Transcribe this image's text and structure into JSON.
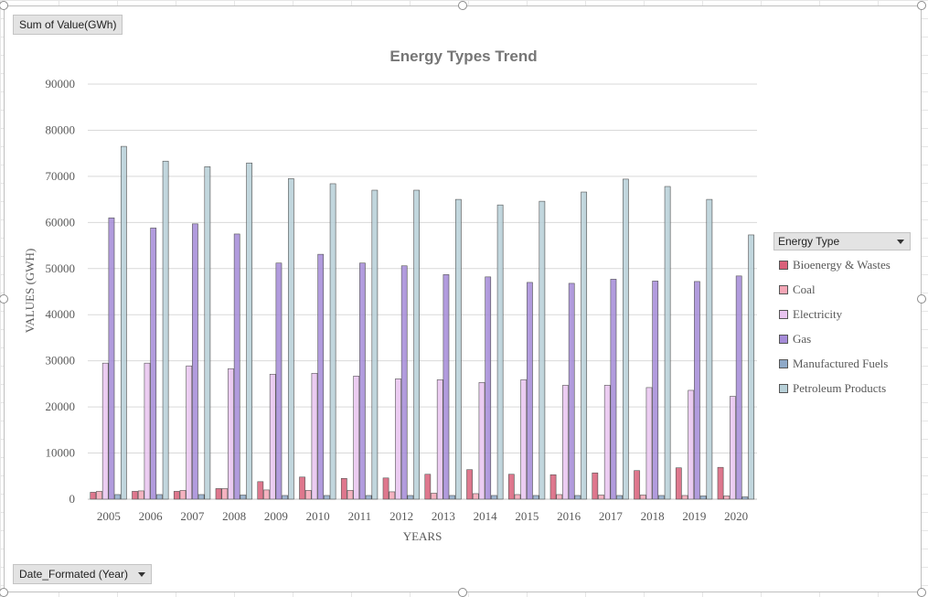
{
  "field_buttons": {
    "values_field": "Sum of Value(GWh)",
    "axis_field": "Date_Formated  (Year)"
  },
  "legend": {
    "title": "Energy Type"
  },
  "chart_data": {
    "type": "bar",
    "title": "Energy Types Trend",
    "xlabel": "YEARS",
    "ylabel": "VALUES (GWH)",
    "ylim": [
      0,
      90000
    ],
    "yticks": [
      0,
      10000,
      20000,
      30000,
      40000,
      50000,
      60000,
      70000,
      80000,
      90000
    ],
    "grid": true,
    "legend_position": "right",
    "categories": [
      "2005",
      "2006",
      "2007",
      "2008",
      "2009",
      "2010",
      "2011",
      "2012",
      "2013",
      "2014",
      "2015",
      "2016",
      "2017",
      "2018",
      "2019",
      "2020"
    ],
    "series": [
      {
        "name": "Bioenergy & Wastes",
        "color": "#d9607a",
        "values": [
          1500,
          1700,
          1700,
          2300,
          3800,
          4800,
          4500,
          4600,
          5400,
          6400,
          5400,
          5300,
          5700,
          6200,
          6800,
          6900
        ]
      },
      {
        "name": "Coal",
        "color": "#f4a6b6",
        "values": [
          1700,
          1800,
          1900,
          2300,
          2000,
          1900,
          1900,
          1600,
          1300,
          1200,
          1000,
          1000,
          900,
          900,
          800,
          700
        ]
      },
      {
        "name": "Electricity",
        "color": "#e9c4f0",
        "values": [
          29500,
          29500,
          28900,
          28300,
          27100,
          27300,
          26700,
          26100,
          25900,
          25300,
          25900,
          24700,
          24700,
          24200,
          23600,
          22300
        ]
      },
      {
        "name": "Gas",
        "color": "#a58bd8",
        "values": [
          61000,
          58800,
          59700,
          57500,
          51200,
          53100,
          51200,
          50600,
          48700,
          48200,
          47000,
          46800,
          47700,
          47300,
          47200,
          48400
        ]
      },
      {
        "name": "Manufactured Fuels",
        "color": "#8ea9c8",
        "values": [
          1000,
          1000,
          1000,
          900,
          800,
          800,
          800,
          800,
          800,
          800,
          800,
          800,
          800,
          800,
          700,
          500
        ]
      },
      {
        "name": "Petroleum Products",
        "color": "#b7d0d8",
        "values": [
          76500,
          73300,
          72100,
          72900,
          69500,
          68400,
          67000,
          67000,
          65000,
          63800,
          64600,
          66600,
          69400,
          67800,
          65000,
          57300
        ]
      }
    ]
  }
}
